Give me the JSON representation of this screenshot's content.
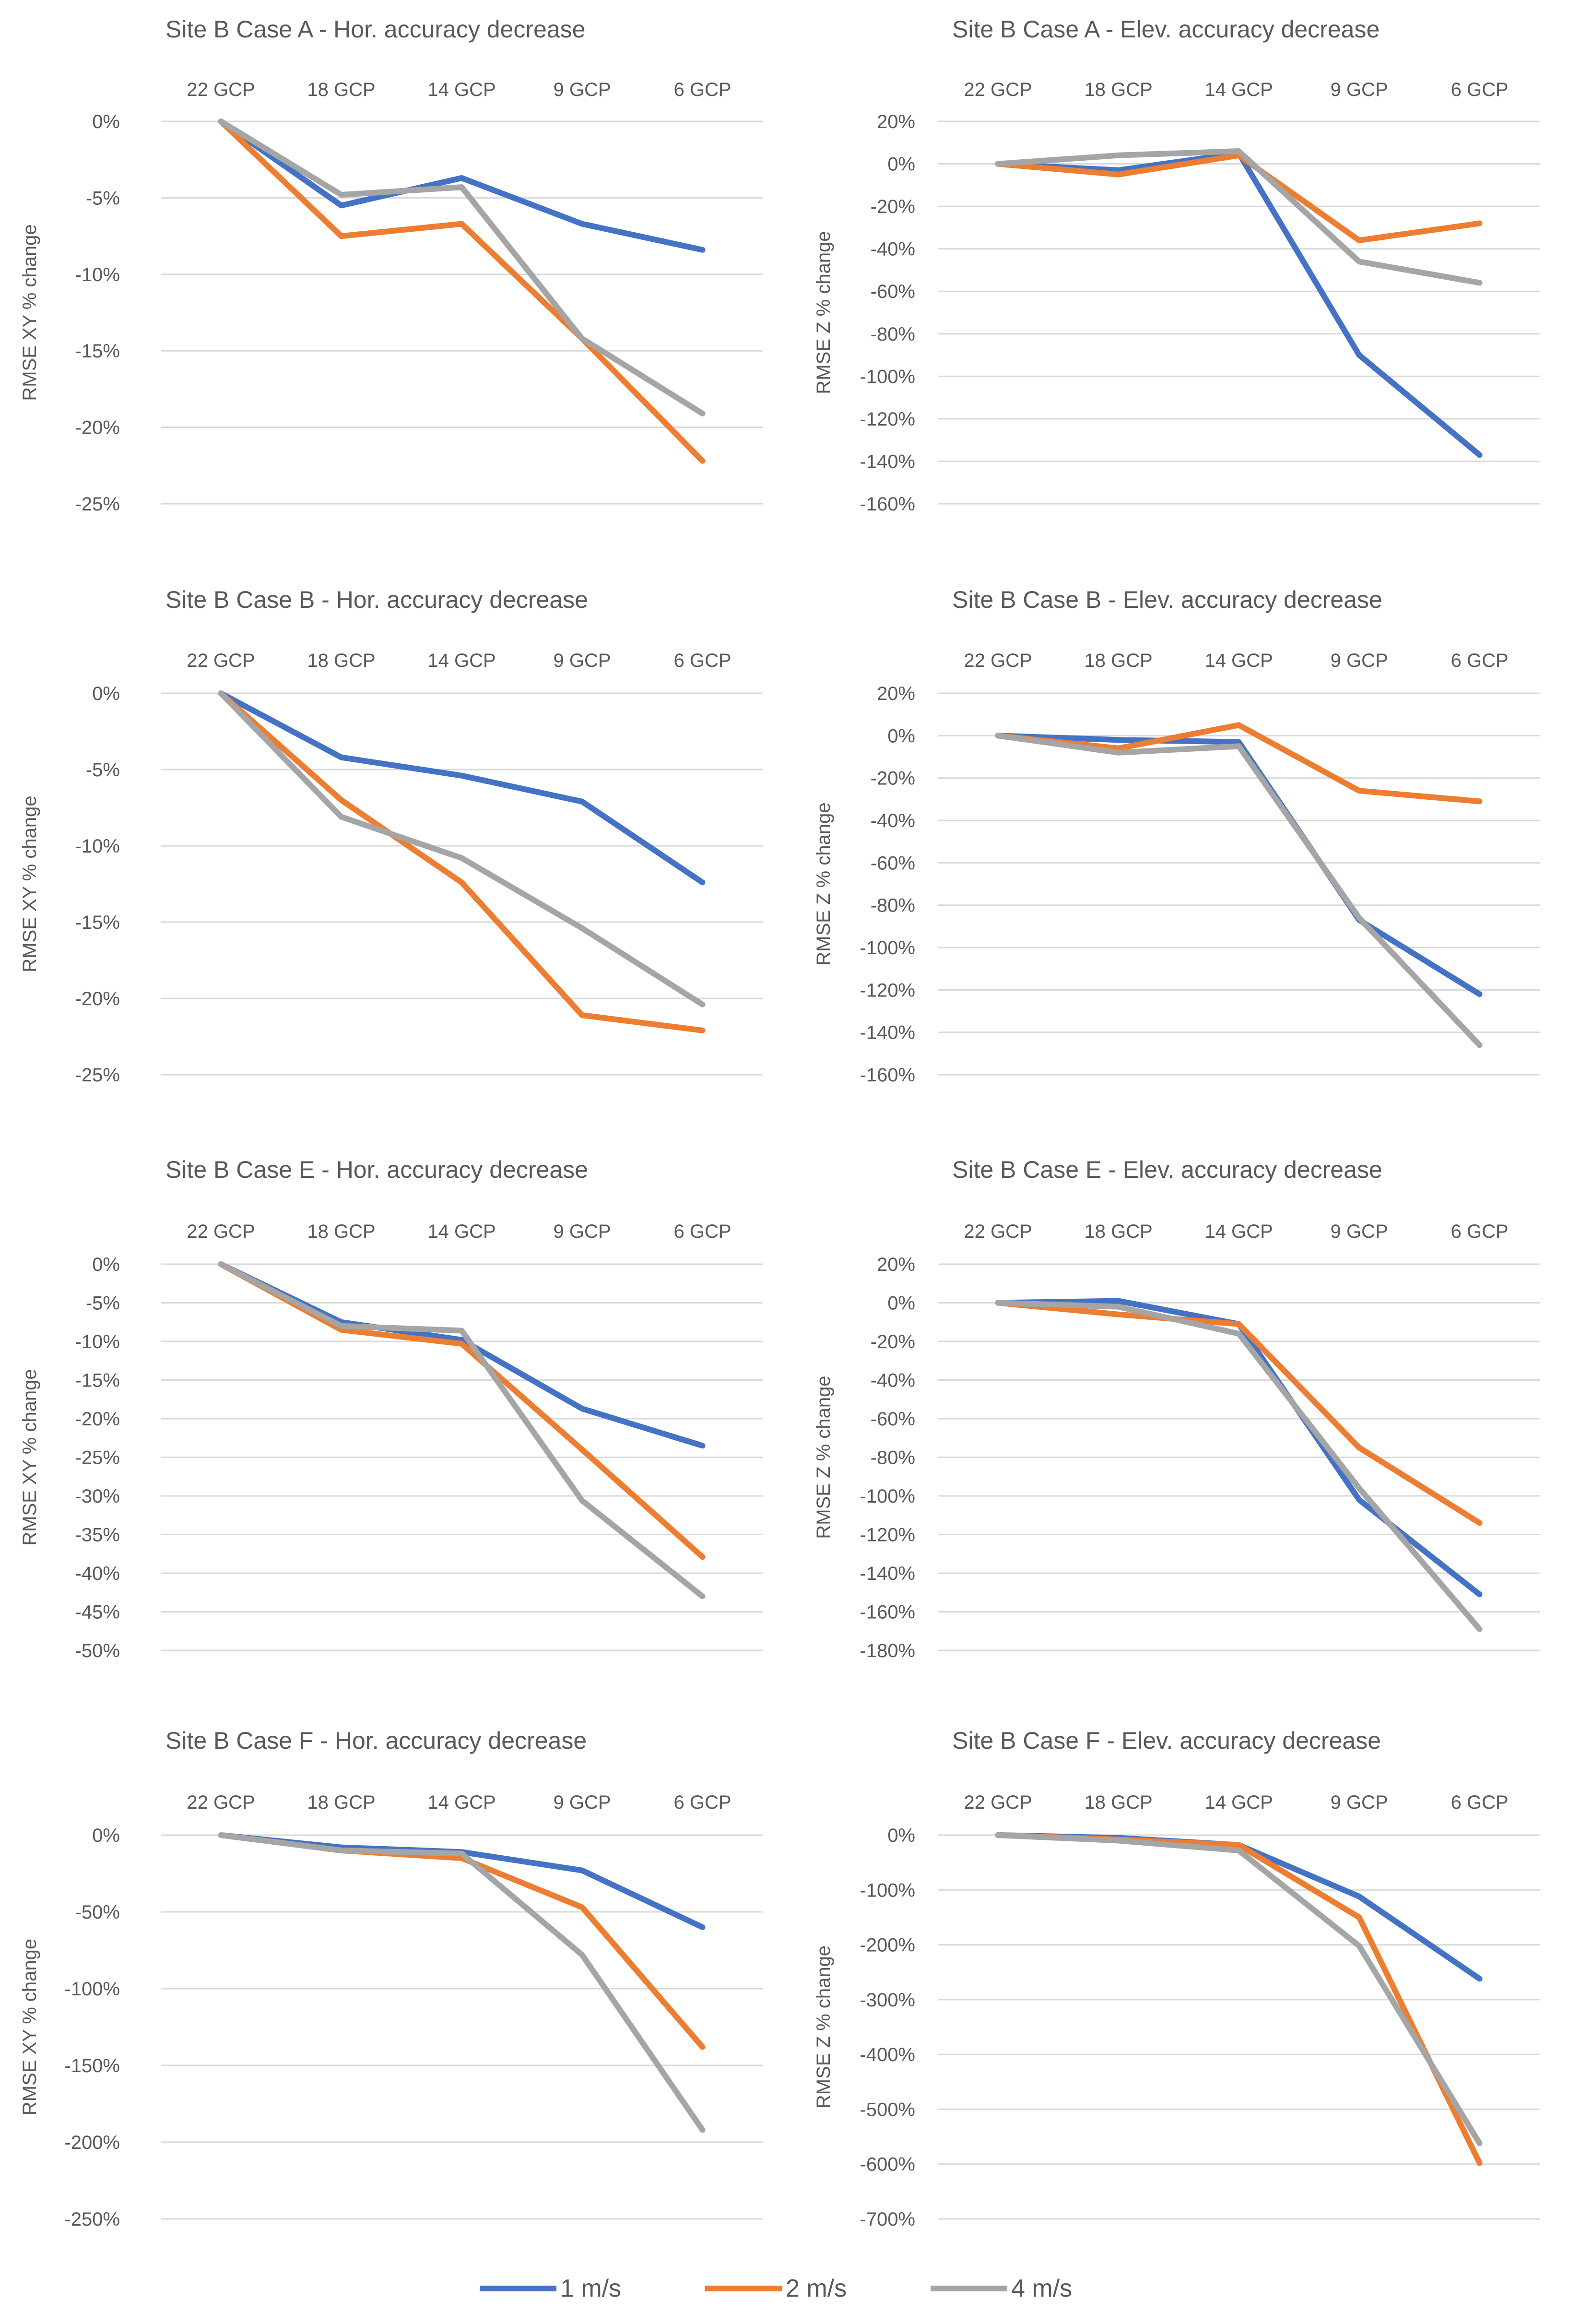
{
  "chart_data": [
    {
      "type": "line",
      "title": "Site B Case A - Hor. accuracy decrease",
      "ylabel": "RMSE XY % change",
      "categories": [
        "22 GCP",
        "18 GCP",
        "14 GCP",
        "9 GCP",
        "6 GCP"
      ],
      "yticks": [
        "0%",
        "-5%",
        "-10%",
        "-15%",
        "-20%",
        "-25%"
      ],
      "ylim": [
        -25,
        0
      ],
      "series": [
        {
          "name": "1 m/s",
          "values": [
            0,
            -5.5,
            -3.7,
            -6.7,
            -8.4
          ]
        },
        {
          "name": "2 m/s",
          "values": [
            0,
            -7.5,
            -6.7,
            -14.2,
            -22.2
          ]
        },
        {
          "name": "4 m/s",
          "values": [
            0,
            -4.8,
            -4.3,
            -14.2,
            -19.1
          ]
        }
      ]
    },
    {
      "type": "line",
      "title": "Site B Case A - Elev. accuracy decrease",
      "ylabel": "RMSE Z % change",
      "categories": [
        "22 GCP",
        "18 GCP",
        "14 GCP",
        "9 GCP",
        "6 GCP"
      ],
      "yticks": [
        "20%",
        "0%",
        "-20%",
        "-40%",
        "-60%",
        "-80%",
        "-100%",
        "-120%",
        "-140%",
        "-160%"
      ],
      "ylim": [
        -160,
        20
      ],
      "series": [
        {
          "name": "1 m/s",
          "values": [
            0,
            -3,
            5,
            -90,
            -137
          ]
        },
        {
          "name": "2 m/s",
          "values": [
            0,
            -5,
            4,
            -36,
            -28
          ]
        },
        {
          "name": "4 m/s",
          "values": [
            0,
            4,
            6,
            -46,
            -56
          ]
        }
      ]
    },
    {
      "type": "line",
      "title": "Site B Case B - Hor. accuracy decrease",
      "ylabel": "RMSE XY % change",
      "categories": [
        "22 GCP",
        "18 GCP",
        "14 GCP",
        "9 GCP",
        "6 GCP"
      ],
      "yticks": [
        "0%",
        "-5%",
        "-10%",
        "-15%",
        "-20%",
        "-25%"
      ],
      "ylim": [
        -25,
        0
      ],
      "series": [
        {
          "name": "1 m/s",
          "values": [
            0,
            -4.2,
            -5.4,
            -7.1,
            -12.4
          ]
        },
        {
          "name": "2 m/s",
          "values": [
            0,
            -7.0,
            -12.4,
            -21.1,
            -22.1
          ]
        },
        {
          "name": "4 m/s",
          "values": [
            0,
            -8.1,
            -10.8,
            -15.4,
            -20.4
          ]
        }
      ]
    },
    {
      "type": "line",
      "title": "Site B Case B - Elev. accuracy decrease",
      "ylabel": "RMSE Z % change",
      "categories": [
        "22 GCP",
        "18 GCP",
        "14 GCP",
        "9 GCP",
        "6 GCP"
      ],
      "yticks": [
        "20%",
        "0%",
        "-20%",
        "-40%",
        "-60%",
        "-80%",
        "-100%",
        "-120%",
        "-140%",
        "-160%"
      ],
      "ylim": [
        -160,
        20
      ],
      "series": [
        {
          "name": "1 m/s",
          "values": [
            0,
            -2,
            -3,
            -87,
            -122
          ]
        },
        {
          "name": "2 m/s",
          "values": [
            0,
            -6,
            5,
            -26,
            -31
          ]
        },
        {
          "name": "4 m/s",
          "values": [
            0,
            -8,
            -5,
            -86,
            -146
          ]
        }
      ]
    },
    {
      "type": "line",
      "title": "Site B Case E - Hor. accuracy decrease",
      "ylabel": "RMSE XY % change",
      "categories": [
        "22 GCP",
        "18 GCP",
        "14 GCP",
        "9 GCP",
        "6 GCP"
      ],
      "yticks": [
        "0%",
        "-5%",
        "-10%",
        "-15%",
        "-20%",
        "-25%",
        "-30%",
        "-35%",
        "-40%",
        "-45%",
        "-50%"
      ],
      "ylim": [
        -50,
        0
      ],
      "series": [
        {
          "name": "1 m/s",
          "values": [
            0,
            -7.5,
            -9.8,
            -18.7,
            -23.5
          ]
        },
        {
          "name": "2 m/s",
          "values": [
            0,
            -8.5,
            -10.3,
            -24.0,
            -37.9
          ]
        },
        {
          "name": "4 m/s",
          "values": [
            0,
            -8.0,
            -8.6,
            -30.6,
            -43.0
          ]
        }
      ]
    },
    {
      "type": "line",
      "title": "Site B Case E - Elev. accuracy decrease",
      "ylabel": "RMSE Z % change",
      "categories": [
        "22 GCP",
        "18 GCP",
        "14 GCP",
        "9 GCP",
        "6 GCP"
      ],
      "yticks": [
        "20%",
        "0%",
        "-20%",
        "-40%",
        "-60%",
        "-80%",
        "-100%",
        "-120%",
        "-140%",
        "-160%",
        "-180%"
      ],
      "ylim": [
        -180,
        20
      ],
      "series": [
        {
          "name": "1 m/s",
          "values": [
            0,
            1,
            -11,
            -102,
            -151
          ]
        },
        {
          "name": "2 m/s",
          "values": [
            0,
            -6,
            -11,
            -75,
            -114
          ]
        },
        {
          "name": "4 m/s",
          "values": [
            0,
            -2,
            -16,
            -96,
            -169
          ]
        }
      ]
    },
    {
      "type": "line",
      "title": "Site B Case F - Hor. accuracy decrease",
      "ylabel": "RMSE XY % change",
      "categories": [
        "22 GCP",
        "18 GCP",
        "14 GCP",
        "9 GCP",
        "6 GCP"
      ],
      "yticks": [
        "0%",
        "-50%",
        "-100%",
        "-150%",
        "-200%",
        "-250%"
      ],
      "ylim": [
        -250,
        0
      ],
      "series": [
        {
          "name": "1 m/s",
          "values": [
            0,
            -8,
            -11,
            -23,
            -60
          ]
        },
        {
          "name": "2 m/s",
          "values": [
            0,
            -10,
            -15,
            -47,
            -138
          ]
        },
        {
          "name": "4 m/s",
          "values": [
            0,
            -10,
            -12,
            -78,
            -192
          ]
        }
      ]
    },
    {
      "type": "line",
      "title": "Site B Case F - Elev. accuracy decrease",
      "ylabel": "RMSE Z % change",
      "categories": [
        "22 GCP",
        "18 GCP",
        "14 GCP",
        "9 GCP",
        "6 GCP"
      ],
      "yticks": [
        "0%",
        "-100%",
        "-200%",
        "-300%",
        "-400%",
        "-500%",
        "-600%",
        "-700%"
      ],
      "ylim": [
        -700,
        0
      ],
      "series": [
        {
          "name": "1 m/s",
          "values": [
            0,
            -5,
            -18,
            -112,
            -262
          ]
        },
        {
          "name": "2 m/s",
          "values": [
            0,
            -8,
            -18,
            -150,
            -598
          ]
        },
        {
          "name": "4 m/s",
          "values": [
            0,
            -10,
            -28,
            -202,
            -562
          ]
        }
      ]
    }
  ],
  "legend": [
    {
      "name": "1 m/s",
      "color": "#4472c4"
    },
    {
      "name": "2 m/s",
      "color": "#ed7d31"
    },
    {
      "name": "4 m/s",
      "color": "#a5a5a5"
    }
  ]
}
